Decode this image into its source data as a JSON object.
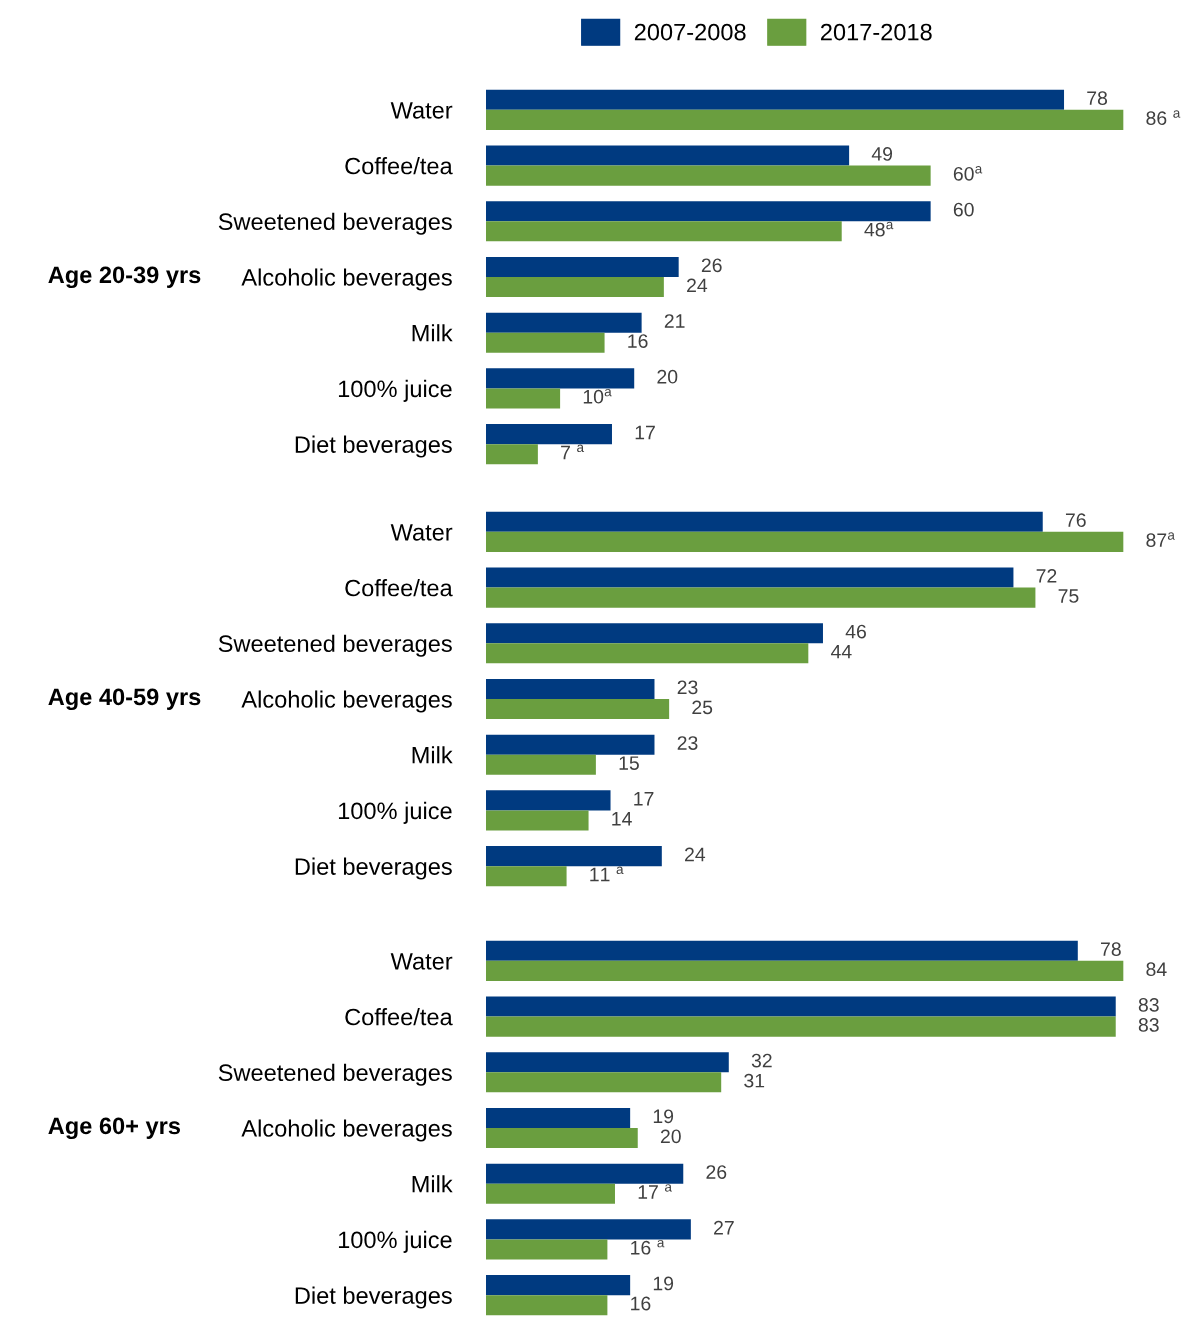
{
  "chart_data": [
    {
      "type": "bar",
      "orientation": "horizontal",
      "ylabel": "Age 20-39 yrs",
      "categories": [
        "Water",
        "Coffee/tea",
        "Sweetened beverages",
        "Alcoholic beverages",
        "Milk",
        "100% juice",
        "Diet beverages"
      ],
      "tick_labels": "y",
      "legend": "top",
      "grid": false,
      "series": [
        {
          "name": "2007-2008",
          "color": "#003a80",
          "values": [
            78,
            49,
            60,
            26,
            21,
            20,
            17
          ],
          "value_labels": [
            "78",
            "49",
            "60",
            "26",
            "21",
            "20",
            "17"
          ]
        },
        {
          "name": "2017-2018",
          "color": "#6a9e3f",
          "values": [
            86,
            60,
            48,
            24,
            16,
            10,
            7
          ],
          "value_labels": [
            "86 $^{a}$",
            "60$^{a}$",
            "48$^{a}$",
            "24",
            "16",
            "10$^{a}$",
            "7 $^{a}$"
          ]
        }
      ]
    },
    {
      "type": "bar",
      "orientation": "horizontal",
      "ylabel": "Age 40-59 yrs",
      "categories": [
        "Water",
        "Coffee/tea",
        "Sweetened beverages",
        "Alcoholic beverages",
        "Milk",
        "100% juice",
        "Diet beverages"
      ],
      "tick_labels": "y",
      "legend": false,
      "grid": false,
      "series": [
        {
          "color": "#003a80",
          "values": [
            76,
            72,
            46,
            23,
            23,
            17,
            24
          ],
          "value_labels": [
            "76",
            "72",
            "46",
            "23",
            "23",
            "17",
            "24"
          ]
        },
        {
          "color": "#6a9e3f",
          "values": [
            87,
            75,
            44,
            25,
            15,
            14,
            11
          ],
          "value_labels": [
            "87$^{a}$",
            "75",
            "44",
            "25",
            "15",
            "14",
            "11 $^{a}$"
          ]
        }
      ]
    },
    {
      "type": "bar",
      "orientation": "horizontal",
      "ylabel": "Age 60+ yrs",
      "categories": [
        "Water",
        "Coffee/tea",
        "Sweetened beverages",
        "Alcoholic beverages",
        "Milk",
        "100% juice",
        "Diet beverages"
      ],
      "tick_labels": "y",
      "legend": false,
      "grid": false,
      "series": [
        {
          "color": "#003a80",
          "values": [
            78,
            83,
            32,
            19,
            26,
            27,
            19
          ],
          "value_labels": [
            "78",
            "83",
            "32",
            "19",
            "26",
            "27",
            "19"
          ]
        },
        {
          "color": "#6a9e3f",
          "values": [
            84,
            83,
            31,
            20,
            17,
            16,
            16
          ],
          "value_labels": [
            "84",
            "83",
            "31",
            "20",
            "17 $^{a}$",
            "16 $^{a}$",
            "16"
          ]
        }
      ]
    }
  ]
}
